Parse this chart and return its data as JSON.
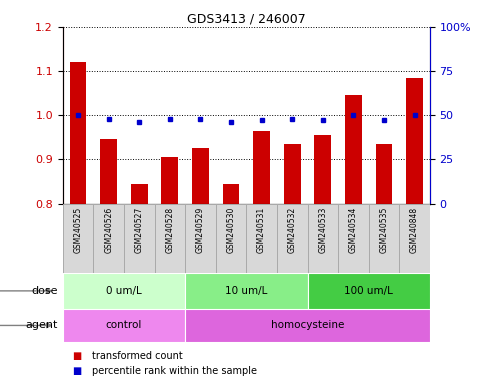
{
  "title": "GDS3413 / 246007",
  "samples": [
    "GSM240525",
    "GSM240526",
    "GSM240527",
    "GSM240528",
    "GSM240529",
    "GSM240530",
    "GSM240531",
    "GSM240532",
    "GSM240533",
    "GSM240534",
    "GSM240535",
    "GSM240848"
  ],
  "bar_values": [
    1.12,
    0.945,
    0.845,
    0.905,
    0.925,
    0.845,
    0.965,
    0.935,
    0.955,
    1.045,
    0.935,
    1.085
  ],
  "dot_values": [
    50,
    48,
    46,
    48,
    48,
    46,
    47,
    48,
    47,
    50,
    47,
    50
  ],
  "bar_color": "#cc0000",
  "dot_color": "#0000cc",
  "ylim_left": [
    0.8,
    1.2
  ],
  "ylim_right": [
    0,
    100
  ],
  "yticks_left": [
    0.8,
    0.9,
    1.0,
    1.1,
    1.2
  ],
  "yticks_right": [
    0,
    25,
    50,
    75,
    100
  ],
  "ytick_labels_right": [
    "0",
    "25",
    "50",
    "75",
    "100%"
  ],
  "dose_groups": [
    {
      "label": "0 um/L",
      "start": 0,
      "end": 4,
      "color": "#ccffcc"
    },
    {
      "label": "10 um/L",
      "start": 4,
      "end": 8,
      "color": "#88ee88"
    },
    {
      "label": "100 um/L",
      "start": 8,
      "end": 12,
      "color": "#44cc44"
    }
  ],
  "agent_groups": [
    {
      "label": "control",
      "start": 0,
      "end": 4,
      "color": "#ee88ee"
    },
    {
      "label": "homocysteine",
      "start": 4,
      "end": 12,
      "color": "#dd66dd"
    }
  ],
  "legend_items": [
    {
      "label": "transformed count",
      "color": "#cc0000"
    },
    {
      "label": "percentile rank within the sample",
      "color": "#0000cc"
    }
  ],
  "grid_color": "black",
  "bar_width": 0.55,
  "sample_box_color": "#d8d8d8",
  "sample_box_edge": "#aaaaaa"
}
